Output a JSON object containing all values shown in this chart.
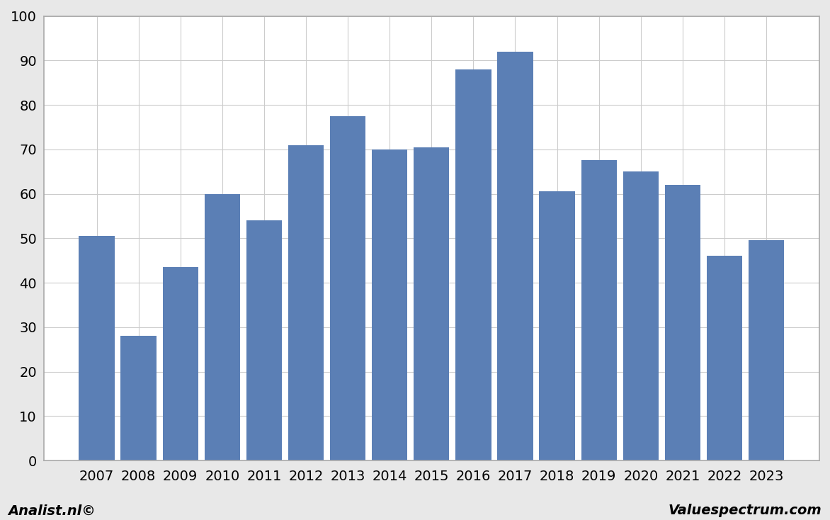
{
  "categories": [
    "2007",
    "2008",
    "2009",
    "2010",
    "2011",
    "2012",
    "2013",
    "2014",
    "2015",
    "2016",
    "2017",
    "2018",
    "2019",
    "2020",
    "2021",
    "2022",
    "2023"
  ],
  "values": [
    50.5,
    28.0,
    43.5,
    60.0,
    54.0,
    71.0,
    77.5,
    70.0,
    70.5,
    88.0,
    92.0,
    60.5,
    67.5,
    65.0,
    62.0,
    46.0,
    49.5
  ],
  "bar_color": "#5b7fb5",
  "ylim": [
    0,
    100
  ],
  "yticks": [
    0,
    10,
    20,
    30,
    40,
    50,
    60,
    70,
    80,
    90,
    100
  ],
  "background_color": "#e8e8e8",
  "plot_bg_color": "#ffffff",
  "grid_color": "#cccccc",
  "footer_left": "Analist.nl©",
  "footer_right": "Valuespectrum.com",
  "border_color": "#aaaaaa",
  "tick_fontsize": 14,
  "footer_fontsize": 14
}
